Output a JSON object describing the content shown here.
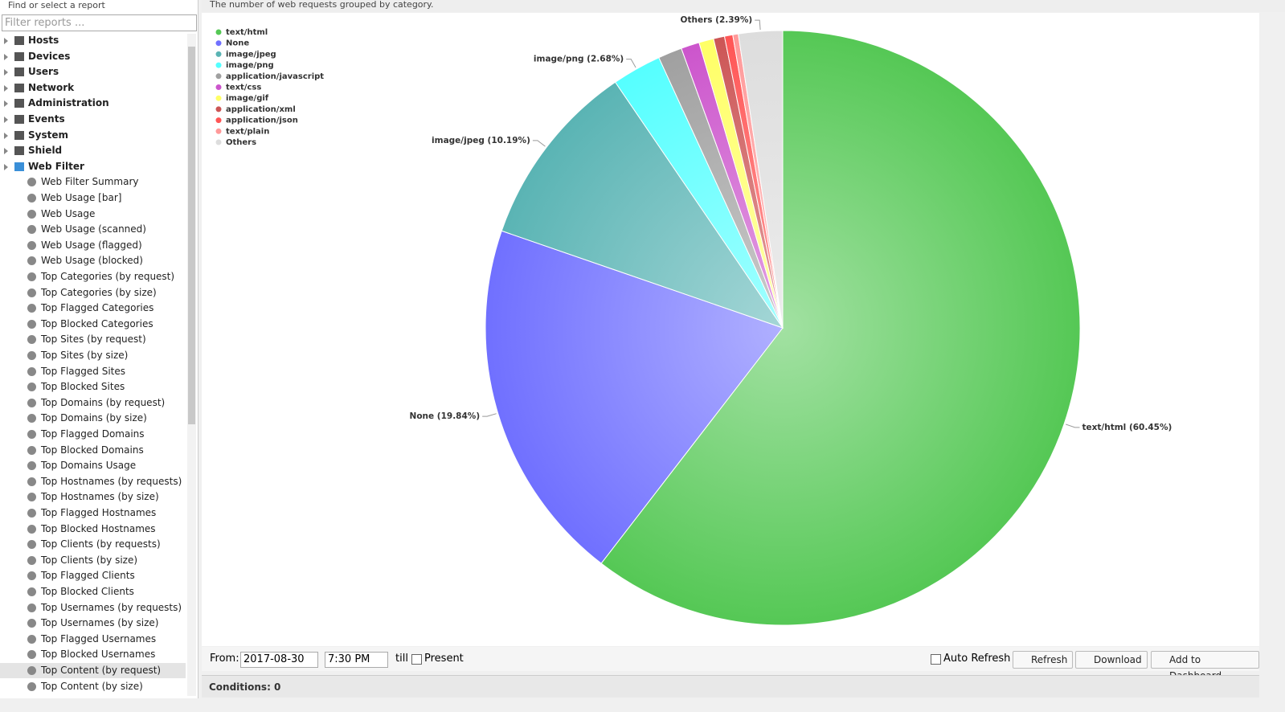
{
  "sidebar": {
    "header": "Find or select a report",
    "filter_placeholder": "Filter reports ...",
    "groups": [
      "Hosts",
      "Devices",
      "Users",
      "Network",
      "Administration",
      "Events",
      "System",
      "Shield",
      "Web Filter"
    ],
    "reports": [
      "Web Filter Summary",
      "Web Usage [bar]",
      "Web Usage",
      "Web Usage (scanned)",
      "Web Usage (flagged)",
      "Web Usage (blocked)",
      "Top Categories (by request)",
      "Top Categories (by size)",
      "Top Flagged Categories",
      "Top Blocked Categories",
      "Top Sites (by request)",
      "Top Sites (by size)",
      "Top Flagged Sites",
      "Top Blocked Sites",
      "Top Domains (by request)",
      "Top Domains (by size)",
      "Top Flagged Domains",
      "Top Blocked Domains",
      "Top Domains Usage",
      "Top Hostnames (by requests)",
      "Top Hostnames (by size)",
      "Top Flagged Hostnames",
      "Top Blocked Hostnames",
      "Top Clients (by requests)",
      "Top Clients (by size)",
      "Top Flagged Clients",
      "Top Blocked Clients",
      "Top Usernames (by requests)",
      "Top Usernames (by size)",
      "Top Flagged Usernames",
      "Top Blocked Usernames",
      "Top Content (by request)",
      "Top Content (by size)"
    ]
  },
  "description": "The number of web requests grouped by category.",
  "toolbar": {
    "from_label": "From:",
    "date": "2017-08-30",
    "time": "7:30 PM",
    "till_label": "till",
    "present_label": "Present",
    "auto_refresh": "Auto Refresh",
    "refresh": "Refresh",
    "download": "Download",
    "add_dashboard": "Add to Dashboard"
  },
  "conditions": "Conditions: 0",
  "chart_data": {
    "type": "pie",
    "categories": [
      "text/html",
      "None",
      "image/jpeg",
      "image/png",
      "application/javascript",
      "text/css",
      "image/gif",
      "application/xml",
      "application/json",
      "text/plain",
      "Others"
    ],
    "values": [
      60.45,
      19.84,
      10.19,
      2.68,
      1.3,
      1.0,
      0.8,
      0.6,
      0.45,
      0.3,
      2.39
    ],
    "value_labels": [
      "text/html (60.45%)",
      "None (19.84%)",
      "image/jpeg (10.19%)",
      "image/png (2.68%)",
      null,
      null,
      null,
      null,
      null,
      null,
      "Others (2.39%)"
    ],
    "colors": [
      "#55c855",
      "#7070ff",
      "#5ab4b4",
      "#55ffff",
      "#a0a0a0",
      "#cc55cc",
      "#ffff66",
      "#cc5555",
      "#ff5555",
      "#ff9999",
      "#dddddd"
    ],
    "legend": "top-left"
  }
}
